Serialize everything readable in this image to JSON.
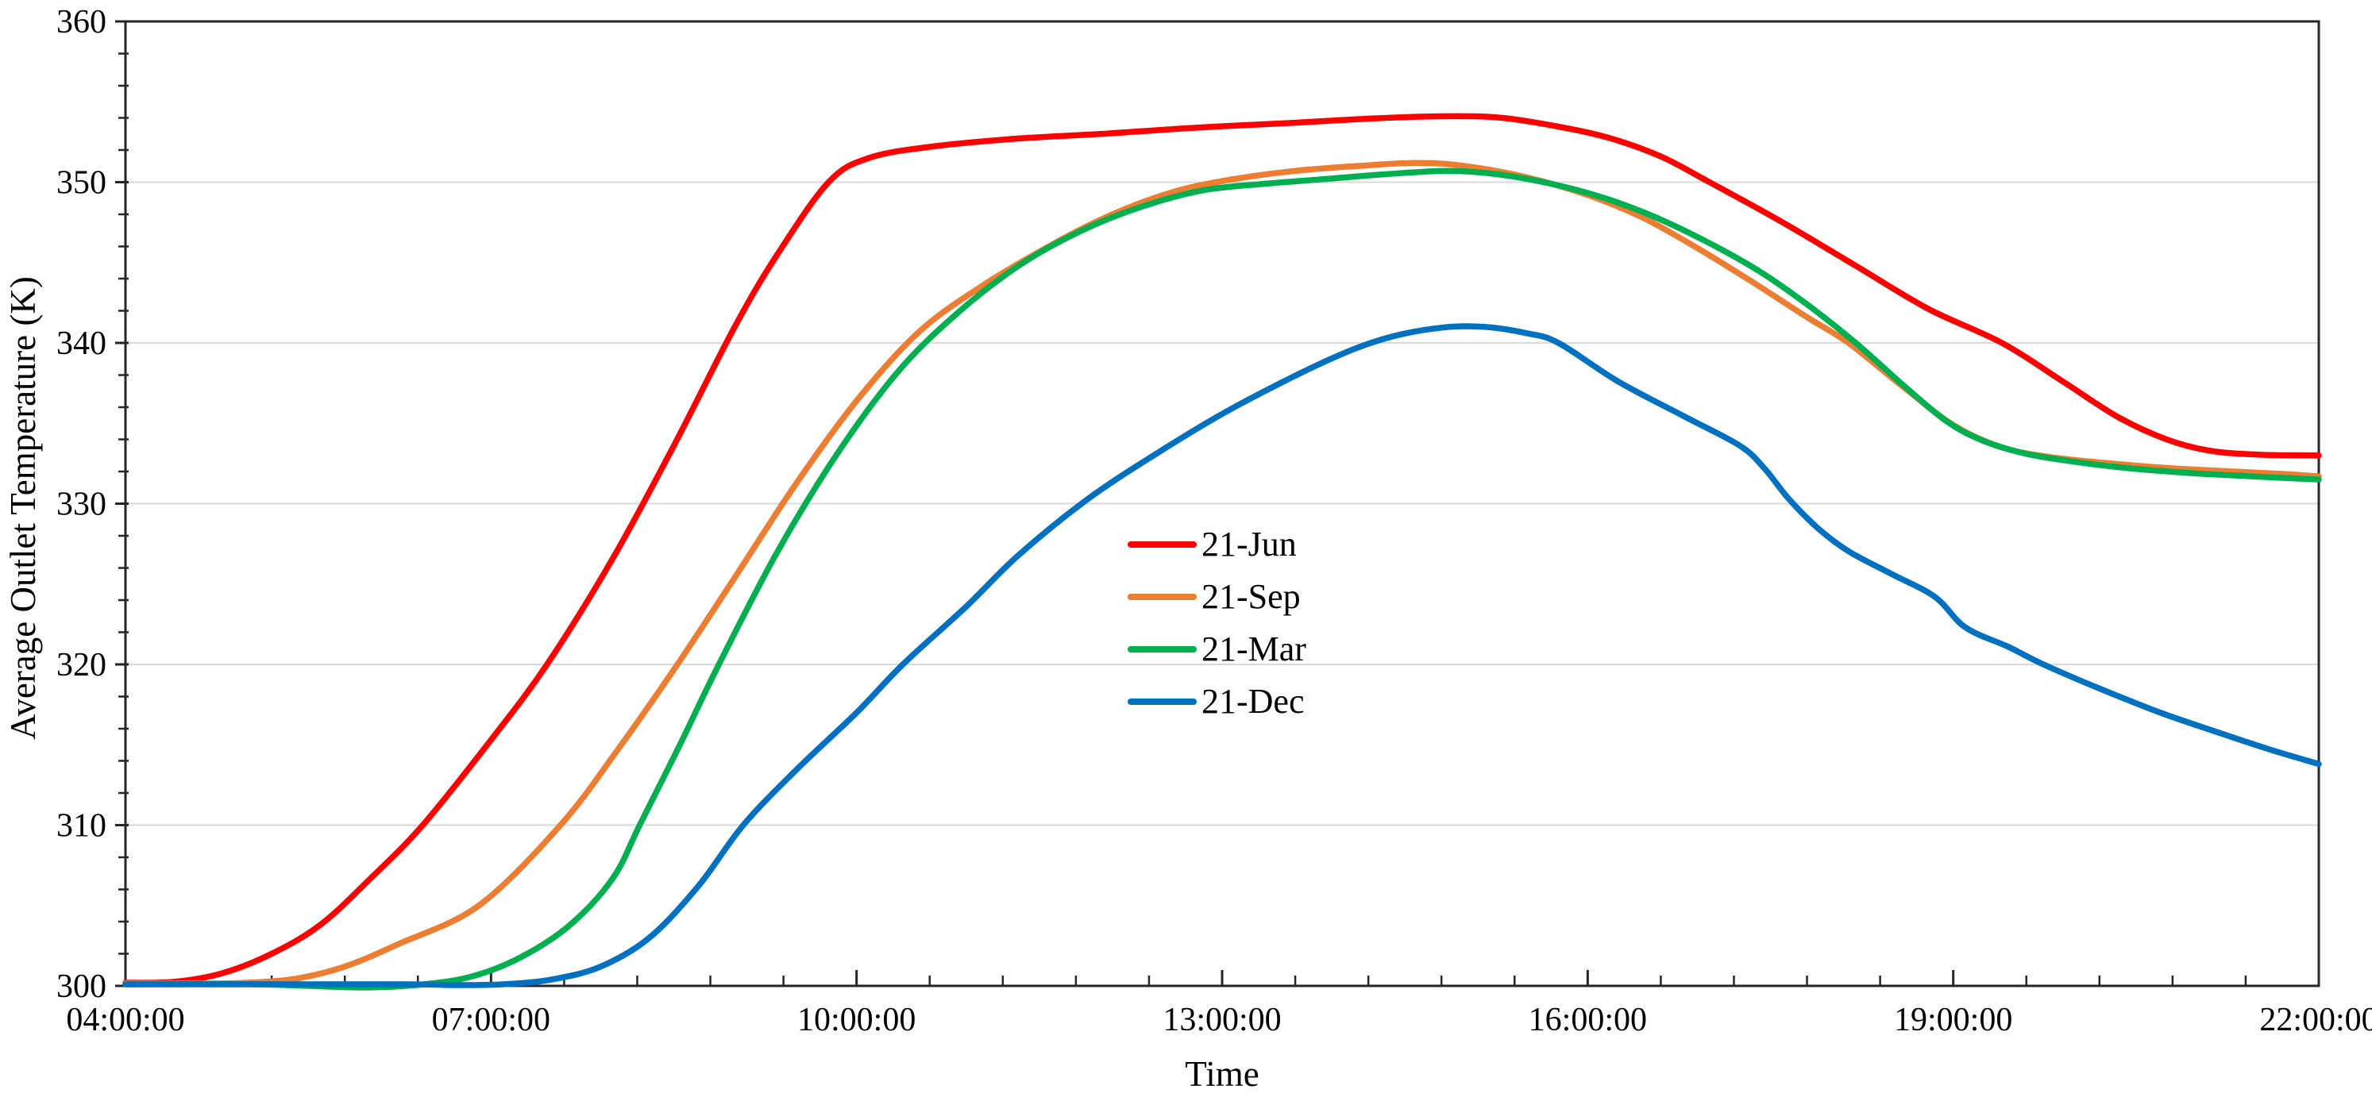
{
  "chart_data": {
    "type": "line",
    "title": "",
    "xlabel": "Time",
    "ylabel": "Average Outlet Temperature (K)",
    "xlim_hours": [
      4,
      22
    ],
    "ylim": [
      300,
      360
    ],
    "x_tick_hours": [
      4,
      7,
      10,
      13,
      16,
      19,
      22
    ],
    "x_tick_labels": [
      "04:00:00",
      "07:00:00",
      "10:00:00",
      "13:00:00",
      "16:00:00",
      "19:00:00",
      "22:00:00"
    ],
    "y_ticks": [
      300,
      310,
      320,
      330,
      340,
      350,
      360
    ],
    "y_tick_labels": [
      "300",
      "310",
      "320",
      "330",
      "340",
      "350",
      "360"
    ],
    "x_minor_ticks_per_major": 5,
    "y_minor_ticks_per_major": 5,
    "grid": "horizontal-major-only",
    "gridline_color": "#D9D9D9",
    "border_color": "#262626",
    "legend_position": "inside-center-left",
    "series": [
      {
        "name": "21-Jun",
        "color": "#FF0000",
        "points": [
          [
            4.0,
            300.2
          ],
          [
            4.4,
            300.25
          ],
          [
            4.8,
            300.8
          ],
          [
            5.2,
            302.0
          ],
          [
            5.6,
            303.8
          ],
          [
            6.0,
            306.6
          ],
          [
            6.44,
            310.0
          ],
          [
            7.0,
            315.3
          ],
          [
            7.46,
            320.0
          ],
          [
            8.0,
            326.6
          ],
          [
            8.5,
            333.6
          ],
          [
            9.0,
            341.0
          ],
          [
            9.35,
            345.5
          ],
          [
            9.77,
            350.0
          ],
          [
            10.1,
            351.5
          ],
          [
            10.6,
            352.2
          ],
          [
            11.3,
            352.7
          ],
          [
            12.0,
            353.0
          ],
          [
            12.8,
            353.4
          ],
          [
            13.6,
            353.7
          ],
          [
            14.2,
            353.95
          ],
          [
            14.8,
            354.1
          ],
          [
            15.3,
            354.0
          ],
          [
            15.8,
            353.4
          ],
          [
            16.2,
            352.7
          ],
          [
            16.6,
            351.6
          ],
          [
            17.0,
            350.0
          ],
          [
            17.6,
            347.5
          ],
          [
            18.2,
            344.8
          ],
          [
            18.8,
            342.1
          ],
          [
            19.4,
            340.0
          ],
          [
            19.9,
            337.6
          ],
          [
            20.35,
            335.4
          ],
          [
            20.75,
            334.0
          ],
          [
            21.1,
            333.3
          ],
          [
            21.5,
            333.05
          ],
          [
            22.0,
            333.0
          ]
        ]
      },
      {
        "name": "21-Sep",
        "color": "#ED7D31",
        "points": [
          [
            4.0,
            300.15
          ],
          [
            4.6,
            300.15
          ],
          [
            5.0,
            300.2
          ],
          [
            5.4,
            300.45
          ],
          [
            5.8,
            301.2
          ],
          [
            6.24,
            302.6
          ],
          [
            6.9,
            305.0
          ],
          [
            7.57,
            310.0
          ],
          [
            8.05,
            314.8
          ],
          [
            8.53,
            320.0
          ],
          [
            9.0,
            325.4
          ],
          [
            9.5,
            331.2
          ],
          [
            10.0,
            336.4
          ],
          [
            10.5,
            340.6
          ],
          [
            11.0,
            343.4
          ],
          [
            11.6,
            346.1
          ],
          [
            12.1,
            348.0
          ],
          [
            12.6,
            349.4
          ],
          [
            13.1,
            350.2
          ],
          [
            13.6,
            350.7
          ],
          [
            14.1,
            351.0
          ],
          [
            14.6,
            351.2
          ],
          [
            15.0,
            351.0
          ],
          [
            15.5,
            350.3
          ],
          [
            16.0,
            349.2
          ],
          [
            16.45,
            347.8
          ],
          [
            16.9,
            345.9
          ],
          [
            17.35,
            343.8
          ],
          [
            17.8,
            341.6
          ],
          [
            18.14,
            340.0
          ],
          [
            18.6,
            337.2
          ],
          [
            19.0,
            334.9
          ],
          [
            19.4,
            333.5
          ],
          [
            19.8,
            332.9
          ],
          [
            20.3,
            332.5
          ],
          [
            20.8,
            332.2
          ],
          [
            21.3,
            332.0
          ],
          [
            21.7,
            331.85
          ],
          [
            22.0,
            331.7
          ]
        ]
      },
      {
        "name": "21-Mar",
        "color": "#00B050",
        "points": [
          [
            4.0,
            300.1
          ],
          [
            5.0,
            300.1
          ],
          [
            5.5,
            300.0
          ],
          [
            6.0,
            299.9
          ],
          [
            6.45,
            300.1
          ],
          [
            6.85,
            300.6
          ],
          [
            7.25,
            301.8
          ],
          [
            7.65,
            303.8
          ],
          [
            8.0,
            306.7
          ],
          [
            8.22,
            310.0
          ],
          [
            8.55,
            315.0
          ],
          [
            8.87,
            320.0
          ],
          [
            9.35,
            327.0
          ],
          [
            9.85,
            333.2
          ],
          [
            10.35,
            338.3
          ],
          [
            10.85,
            342.0
          ],
          [
            11.35,
            344.9
          ],
          [
            11.85,
            347.0
          ],
          [
            12.35,
            348.5
          ],
          [
            12.85,
            349.5
          ],
          [
            13.35,
            349.9
          ],
          [
            13.85,
            350.2
          ],
          [
            14.35,
            350.5
          ],
          [
            14.85,
            350.7
          ],
          [
            15.25,
            350.5
          ],
          [
            15.7,
            349.9
          ],
          [
            16.1,
            349.1
          ],
          [
            16.5,
            348.0
          ],
          [
            16.95,
            346.4
          ],
          [
            17.4,
            344.5
          ],
          [
            17.8,
            342.4
          ],
          [
            18.2,
            340.0
          ],
          [
            18.6,
            337.3
          ],
          [
            18.95,
            335.1
          ],
          [
            19.25,
            333.9
          ],
          [
            19.6,
            333.1
          ],
          [
            20.0,
            332.6
          ],
          [
            20.45,
            332.2
          ],
          [
            20.95,
            331.9
          ],
          [
            21.45,
            331.7
          ],
          [
            22.0,
            331.5
          ]
        ]
      },
      {
        "name": "21-Dec",
        "color": "#0070C0",
        "points": [
          [
            4.0,
            300.1
          ],
          [
            6.2,
            300.1
          ],
          [
            6.7,
            300.05
          ],
          [
            7.1,
            300.1
          ],
          [
            7.5,
            300.4
          ],
          [
            7.9,
            301.2
          ],
          [
            8.3,
            303.0
          ],
          [
            8.7,
            306.2
          ],
          [
            9.07,
            310.0
          ],
          [
            9.5,
            313.4
          ],
          [
            10.0,
            317.0
          ],
          [
            10.38,
            320.0
          ],
          [
            10.9,
            323.6
          ],
          [
            11.33,
            326.8
          ],
          [
            11.9,
            330.3
          ],
          [
            12.5,
            333.3
          ],
          [
            13.1,
            336.0
          ],
          [
            13.86,
            338.9
          ],
          [
            14.35,
            340.3
          ],
          [
            14.8,
            340.95
          ],
          [
            15.15,
            341.0
          ],
          [
            15.5,
            340.6
          ],
          [
            15.76,
            340.0
          ],
          [
            16.25,
            337.6
          ],
          [
            16.8,
            335.4
          ],
          [
            17.25,
            333.6
          ],
          [
            17.45,
            332.2
          ],
          [
            17.65,
            330.3
          ],
          [
            17.9,
            328.4
          ],
          [
            18.15,
            327.0
          ],
          [
            18.5,
            325.6
          ],
          [
            18.85,
            324.2
          ],
          [
            19.1,
            322.3
          ],
          [
            19.45,
            321.1
          ],
          [
            19.74,
            320.0
          ],
          [
            20.2,
            318.5
          ],
          [
            20.7,
            317.0
          ],
          [
            21.2,
            315.7
          ],
          [
            21.6,
            314.7
          ],
          [
            22.0,
            313.8
          ]
        ]
      }
    ]
  },
  "legend": {
    "items": [
      {
        "label": "21-Jun",
        "color": "#FF0000"
      },
      {
        "label": "21-Sep",
        "color": "#ED7D31"
      },
      {
        "label": "21-Mar",
        "color": "#00B050"
      },
      {
        "label": "21-Dec",
        "color": "#0070C0"
      }
    ]
  }
}
